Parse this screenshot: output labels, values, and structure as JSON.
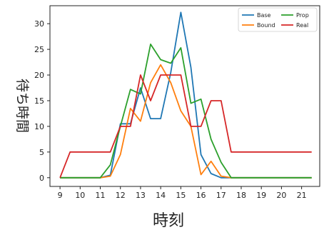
{
  "chart_data": {
    "type": "line",
    "title": "",
    "xlabel": "時刻",
    "ylabel": "待ち時間",
    "xlim": [
      8.5,
      21.9
    ],
    "ylim": [
      -1.7,
      33.5
    ],
    "xticks": [
      9,
      10,
      11,
      12,
      13,
      14,
      15,
      16,
      17,
      18,
      19,
      20,
      21
    ],
    "yticks": [
      0,
      5,
      10,
      15,
      20,
      25,
      30
    ],
    "grid": false,
    "legend": "top-right",
    "series": [
      {
        "name": "Base",
        "color": "#1f77b4",
        "x": [
          9,
          10,
          11,
          11.5,
          12,
          12.5,
          13,
          13.5,
          14,
          14.5,
          15,
          15.5,
          16,
          16.5,
          17,
          17.5,
          18,
          19,
          20,
          21.5
        ],
        "y": [
          0,
          0,
          0,
          0.5,
          10.5,
          10.5,
          17.5,
          11.5,
          11.5,
          20.5,
          32.2,
          21.5,
          4.5,
          0.8,
          0,
          0,
          0,
          0,
          0,
          0
        ]
      },
      {
        "name": "Bound",
        "color": "#ff7f0e",
        "x": [
          9,
          10,
          11,
          11.5,
          12,
          12.5,
          13,
          13.5,
          14,
          14.5,
          15,
          15.5,
          16,
          16.5,
          17,
          17.5,
          18,
          19,
          20,
          21.5
        ],
        "y": [
          0,
          0,
          0,
          0.3,
          4.5,
          13.5,
          11,
          18.5,
          22,
          18.5,
          13,
          10,
          0.6,
          3.2,
          0.3,
          0,
          0,
          0,
          0,
          0
        ]
      },
      {
        "name": "Prop",
        "color": "#2ca02c",
        "x": [
          9,
          10,
          11,
          11.5,
          12,
          12.5,
          13,
          13.5,
          14,
          14.5,
          15,
          15.5,
          16,
          16.5,
          17,
          17.5,
          18,
          19,
          20,
          21.5
        ],
        "y": [
          0,
          0,
          0,
          2.5,
          10,
          17.2,
          16.3,
          26,
          23,
          22.3,
          25.3,
          14.5,
          15.3,
          7.5,
          3,
          0,
          0,
          0,
          0,
          0
        ]
      },
      {
        "name": "Real",
        "color": "#d62728",
        "x": [
          9,
          9.5,
          10,
          11,
          11.5,
          12,
          12.5,
          13,
          13.5,
          14,
          14.5,
          15,
          15.5,
          16,
          16.5,
          17,
          17.5,
          18,
          19,
          20,
          21.5
        ],
        "y": [
          0,
          5,
          5,
          5,
          5,
          10,
          10,
          20,
          15,
          20,
          20,
          20,
          10,
          10,
          15,
          15,
          5,
          5,
          5,
          5,
          5
        ]
      }
    ]
  }
}
